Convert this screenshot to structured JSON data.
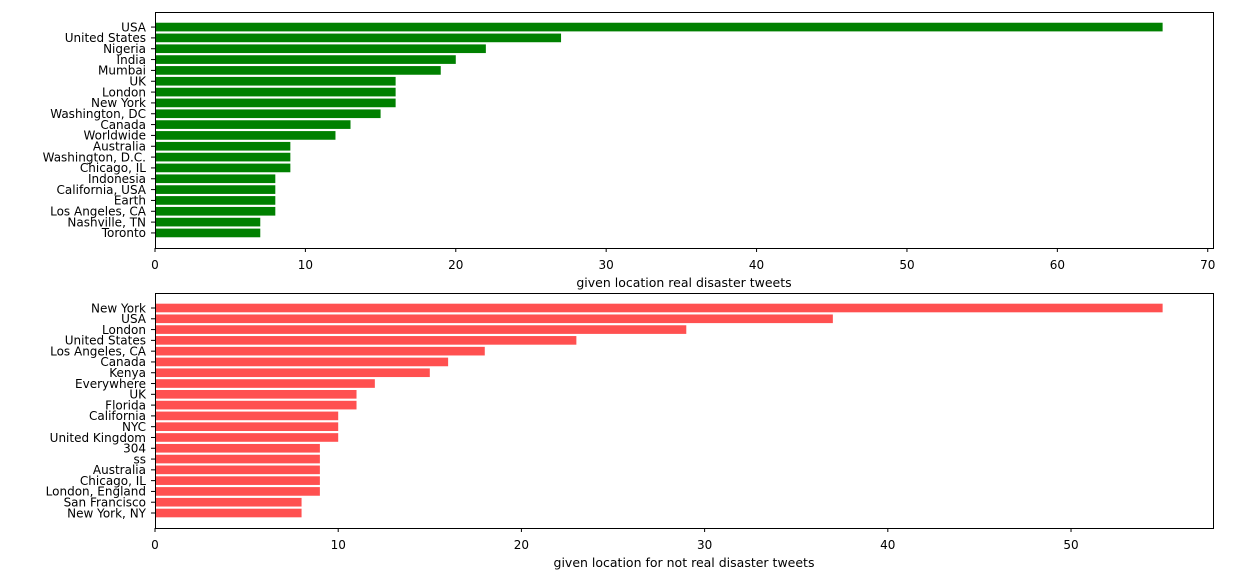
{
  "chart_data": [
    {
      "type": "bar",
      "orientation": "horizontal",
      "title": "",
      "xlabel": "given location real disaster tweets",
      "ylabel": "",
      "xlim": [
        0,
        70.35
      ],
      "xticks": [
        0,
        10,
        20,
        30,
        40,
        50,
        60,
        70
      ],
      "grid": false,
      "color": "#008000",
      "categories": [
        "USA",
        "United States",
        "Nigeria",
        "India",
        "Mumbai",
        "UK",
        "London",
        "New York",
        "Washington, DC",
        "Canada",
        "Worldwide",
        "Australia",
        "Washington, D.C.",
        "Chicago, IL",
        "Indonesia",
        "California, USA",
        "Earth",
        "Los Angeles, CA",
        "Nashville, TN",
        "Toronto"
      ],
      "values": [
        67,
        27,
        22,
        20,
        19,
        16,
        16,
        16,
        15,
        13,
        12,
        9,
        9,
        9,
        8,
        8,
        8,
        8,
        7,
        7
      ]
    },
    {
      "type": "bar",
      "orientation": "horizontal",
      "title": "",
      "xlabel": "given location for not real disaster tweets",
      "ylabel": "",
      "xlim": [
        0,
        57.75
      ],
      "xticks": [
        0,
        10,
        20,
        30,
        40,
        50
      ],
      "grid": false,
      "color": "#ff5050",
      "categories": [
        "New York",
        "USA",
        "London",
        "United States",
        "Los Angeles, CA",
        "Canada",
        "Kenya",
        "Everywhere",
        "UK",
        "Florida",
        "California",
        "NYC",
        "United Kingdom",
        "304",
        "ss",
        "Australia",
        "Chicago, IL",
        "London, England",
        "San Francisco",
        "New York, NY"
      ],
      "values": [
        55,
        37,
        29,
        23,
        18,
        16,
        15,
        12,
        11,
        11,
        10,
        10,
        10,
        9,
        9,
        9,
        9,
        9,
        8,
        8
      ]
    }
  ]
}
